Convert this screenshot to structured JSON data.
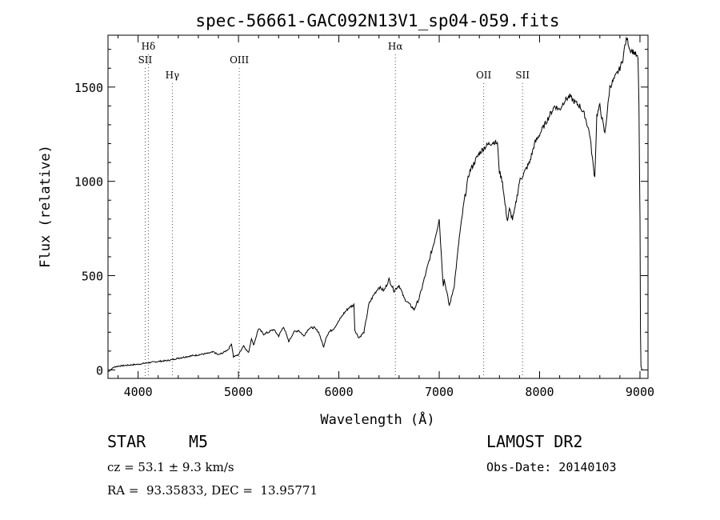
{
  "chart_data": {
    "type": "line",
    "title": "spec-56661-GAC092N13V1_sp04-059.fits",
    "xlabel": "Wavelength (Å)",
    "ylabel": "Flux (relative)",
    "xlim": [
      3700,
      9080
    ],
    "ylim": [
      -45,
      1775
    ],
    "xticks": [
      4000,
      5000,
      6000,
      7000,
      8000,
      9000
    ],
    "yticks": [
      0,
      500,
      1000,
      1500
    ],
    "grid": false,
    "lines": [
      {
        "label": "Hδ",
        "x": 4102,
        "tier": 0
      },
      {
        "label": "SII",
        "x": 4070,
        "tier": 1
      },
      {
        "label": "Hγ",
        "x": 4341,
        "tier": 2
      },
      {
        "label": "OIII",
        "x": 5008,
        "tier": 1
      },
      {
        "label": "Hα",
        "x": 6563,
        "tier": 0
      },
      {
        "label": "OII",
        "x": 7443,
        "tier": 2
      },
      {
        "label": "SII",
        "x": 7830,
        "tier": 2
      }
    ],
    "series": [
      {
        "x": [
          3700,
          3760,
          3800,
          3900,
          4000,
          4100,
          4200,
          4300,
          4400,
          4500,
          4600,
          4700,
          4750,
          4800,
          4850,
          4900,
          4930,
          4950,
          5000,
          5050,
          5100,
          5130,
          5150,
          5200,
          5250,
          5300,
          5350,
          5400,
          5450,
          5500,
          5550,
          5600,
          5650,
          5700,
          5750,
          5800,
          5830,
          5850,
          5870,
          5900,
          5950,
          6000,
          6050,
          6100,
          6150,
          6160,
          6200,
          6250,
          6300,
          6350,
          6400,
          6450,
          6500,
          6550,
          6600,
          6650,
          6700,
          6750,
          6800,
          6850,
          6900,
          6950,
          7000,
          7020,
          7040,
          7050,
          7080,
          7100,
          7120,
          7150,
          7200,
          7250,
          7300,
          7350,
          7400,
          7450,
          7500,
          7550,
          7580,
          7600,
          7630,
          7650,
          7680,
          7700,
          7730,
          7750,
          7800,
          7850,
          7900,
          7950,
          8000,
          8050,
          8100,
          8150,
          8200,
          8250,
          8300,
          8350,
          8400,
          8450,
          8500,
          8530,
          8550,
          8570,
          8600,
          8650,
          8700,
          8750,
          8800,
          8830,
          8850,
          8870,
          8900,
          8950,
          8980,
          8990,
          9000,
          9005,
          9010,
          9020
        ],
        "y": [
          -10,
          15,
          20,
          25,
          30,
          38,
          45,
          50,
          62,
          72,
          80,
          88,
          95,
          80,
          92,
          110,
          140,
          70,
          80,
          130,
          90,
          170,
          130,
          220,
          190,
          200,
          215,
          180,
          230,
          150,
          200,
          210,
          180,
          220,
          225,
          200,
          150,
          120,
          170,
          200,
          220,
          260,
          300,
          330,
          345,
          210,
          170,
          200,
          350,
          400,
          440,
          420,
          480,
          420,
          450,
          380,
          350,
          320,
          380,
          480,
          580,
          680,
          800,
          620,
          450,
          480,
          400,
          340,
          380,
          450,
          700,
          900,
          1050,
          1100,
          1150,
          1180,
          1200,
          1210,
          1200,
          1050,
          1000,
          900,
          790,
          850,
          800,
          840,
          1000,
          1050,
          1100,
          1200,
          1250,
          1300,
          1350,
          1400,
          1380,
          1430,
          1450,
          1420,
          1400,
          1350,
          1250,
          1100,
          1020,
          1350,
          1400,
          1250,
          1500,
          1550,
          1600,
          1650,
          1720,
          1760,
          1700,
          1680,
          1650,
          1400,
          800,
          200,
          20,
          0
        ]
      }
    ]
  },
  "info": {
    "obj_class": "STAR",
    "obj_subclass": "M5",
    "survey": "LAMOST DR2",
    "cz": "cz = 53.1 ± 9.3 km/s",
    "obs_date": "Obs-Date: 20140103",
    "radec": "RA =  93.35833, DEC =  13.95771"
  }
}
